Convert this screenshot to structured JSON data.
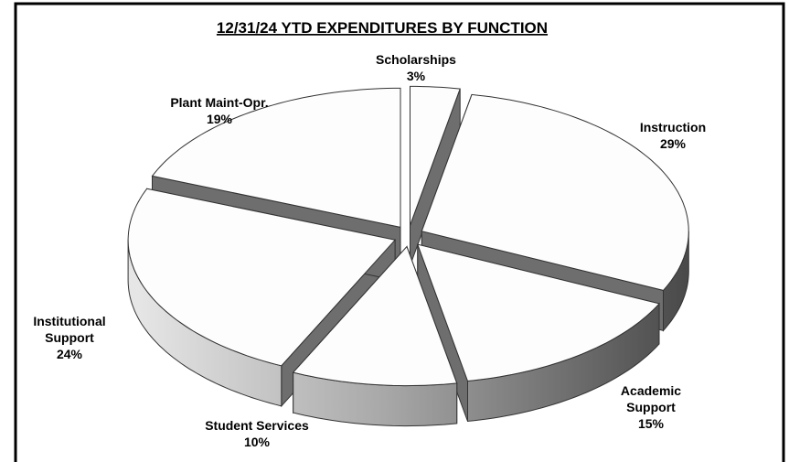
{
  "chart_data": {
    "type": "pie",
    "title": "12/31/24 YTD EXPENDITURES BY FUNCTION",
    "categories": [
      "Scholarships",
      "Instruction",
      "Academic Support",
      "Student Services",
      "Institutional Support",
      "Plant Maint-Opr."
    ],
    "values": [
      3,
      29,
      15,
      10,
      24,
      19
    ],
    "value_labels": [
      "3%",
      "29%",
      "15%",
      "10%",
      "24%",
      "19%"
    ],
    "color": "#fdfdfd",
    "three_d": true,
    "exploded": true
  }
}
